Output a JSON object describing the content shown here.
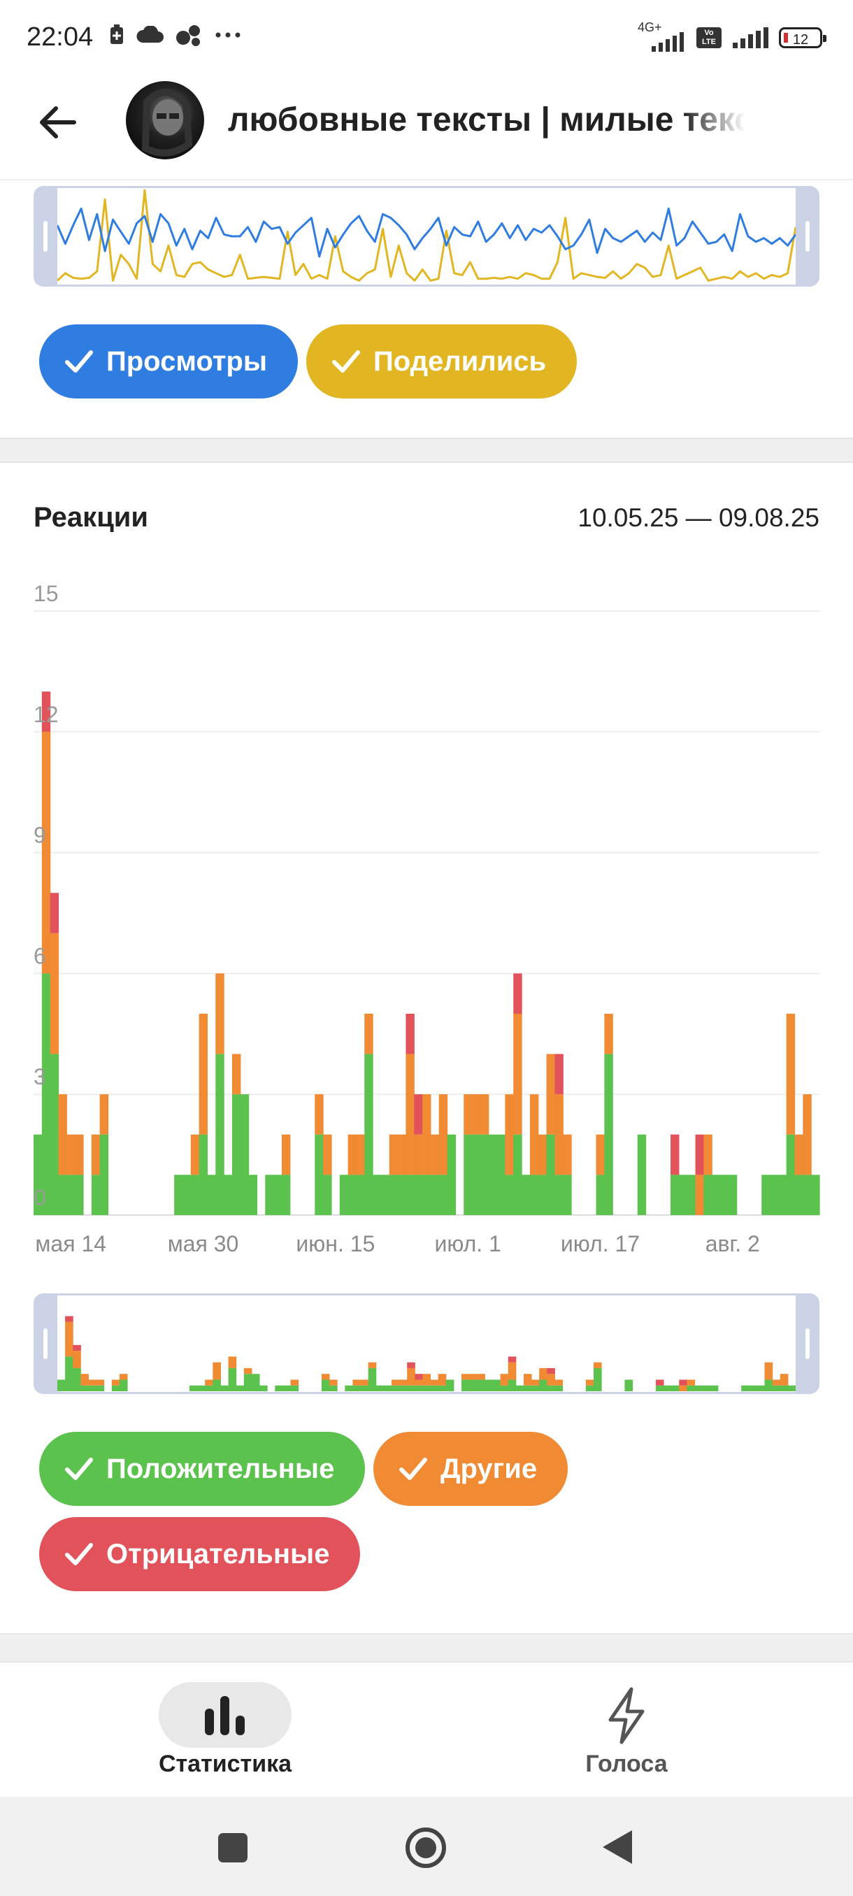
{
  "status_bar": {
    "time": "22:04",
    "network": "4G+",
    "volte": "Vo LTE",
    "battery": "12",
    "icons": [
      "battery-saver-icon",
      "cloud-icon",
      "bubbles-icon",
      "more-dots-icon",
      "signal-icon",
      "volte-icon",
      "battery-icon"
    ]
  },
  "header": {
    "back_icon": "arrow-left-icon",
    "title": "любовные тексты | милые тексты"
  },
  "top_overview": {
    "legend": [
      {
        "label": "Просмотры",
        "color": "#2f7de0"
      },
      {
        "label": "Поделились",
        "color": "#e2b623"
      }
    ],
    "series": {
      "views": [
        62,
        42,
        62,
        80,
        46,
        74,
        34,
        68,
        55,
        42,
        64,
        72,
        44,
        74,
        64,
        40,
        58,
        36,
        56,
        48,
        70,
        52,
        50,
        50,
        60,
        44,
        66,
        58,
        60,
        42,
        54,
        62,
        70,
        28,
        58,
        38,
        52,
        64,
        72,
        56,
        44,
        74,
        70,
        62,
        52,
        36,
        48,
        58,
        70,
        40,
        60,
        52,
        50,
        66,
        44,
        52,
        64,
        48,
        62,
        46,
        58,
        54,
        62,
        50,
        36,
        40,
        52,
        68,
        32,
        58,
        48,
        44,
        50,
        56,
        44,
        54,
        46,
        80,
        40,
        48,
        66,
        54,
        42,
        44,
        52,
        34,
        74,
        50,
        44,
        48,
        42,
        48,
        40,
        52
      ],
      "shares": [
        2,
        10,
        5,
        4,
        5,
        12,
        90,
        2,
        30,
        20,
        4,
        100,
        20,
        12,
        40,
        8,
        6,
        20,
        22,
        14,
        10,
        6,
        8,
        30,
        4,
        5,
        6,
        5,
        4,
        55,
        8,
        20,
        4,
        8,
        4,
        50,
        12,
        6,
        2,
        10,
        14,
        58,
        6,
        40,
        10,
        2,
        14,
        2,
        4,
        56,
        10,
        8,
        22,
        4,
        4,
        5,
        4,
        6,
        4,
        10,
        8,
        4,
        4,
        22,
        70,
        4,
        10,
        8,
        6,
        5,
        12,
        4,
        10,
        20,
        16,
        6,
        8,
        40,
        4,
        8,
        12,
        16,
        2,
        4,
        6,
        4,
        12,
        6,
        10,
        4,
        8,
        6,
        10,
        60
      ]
    }
  },
  "reactions": {
    "title": "Реакции",
    "date_range": "10.05.25 — 09.08.25",
    "legend": [
      {
        "label": "Положительные",
        "color": "#5cc24e"
      },
      {
        "label": "Другие",
        "color": "#f08a33"
      },
      {
        "label": "Отрицательные",
        "color": "#e2525a"
      }
    ]
  },
  "chart_data": {
    "type": "bar",
    "stacked": true,
    "title": "Реакции",
    "date_range": "10.05.25 — 09.08.25",
    "ylim": [
      0,
      15
    ],
    "yticks": [
      0,
      3,
      6,
      9,
      12,
      15
    ],
    "x_tick_labels": [
      "мая 14",
      "мая 30",
      "июн. 15",
      "июл. 1",
      "июл. 17",
      "авг. 2"
    ],
    "x_tick_indices": [
      4,
      20,
      36,
      52,
      68,
      84
    ],
    "grid": true,
    "series": [
      {
        "name": "Положительные",
        "color": "#5cc24e",
        "values": [
          2,
          6,
          4,
          1,
          1,
          1,
          0,
          1,
          2,
          0,
          0,
          0,
          0,
          0,
          0,
          0,
          0,
          1,
          1,
          1,
          2,
          1,
          4,
          1,
          3,
          3,
          1,
          0,
          1,
          1,
          1,
          0,
          0,
          0,
          2,
          1,
          0,
          1,
          1,
          1,
          4,
          1,
          1,
          1,
          1,
          1,
          1,
          1,
          1,
          1,
          2,
          0,
          2,
          2,
          2,
          2,
          2,
          1,
          2,
          1,
          1,
          1,
          2,
          1,
          1,
          0,
          0,
          0,
          1,
          4,
          0,
          0,
          0,
          2,
          0,
          0,
          0,
          1,
          1,
          1,
          0,
          1,
          1,
          1,
          1,
          0,
          0,
          0,
          1,
          1,
          1,
          2,
          1,
          1,
          1
        ]
      },
      {
        "name": "Другие",
        "color": "#f08a33",
        "values": [
          0,
          6,
          3,
          2,
          1,
          1,
          0,
          1,
          1,
          0,
          0,
          0,
          0,
          0,
          0,
          0,
          0,
          0,
          0,
          1,
          3,
          0,
          2,
          0,
          1,
          0,
          0,
          0,
          0,
          0,
          1,
          0,
          0,
          0,
          1,
          1,
          0,
          0,
          1,
          1,
          1,
          0,
          0,
          1,
          1,
          3,
          1,
          2,
          1,
          2,
          0,
          0,
          1,
          1,
          1,
          0,
          0,
          2,
          3,
          0,
          2,
          1,
          2,
          2,
          1,
          0,
          0,
          0,
          1,
          1,
          0,
          0,
          0,
          0,
          0,
          0,
          0,
          0,
          0,
          0,
          1,
          1,
          0,
          0,
          0,
          0,
          0,
          0,
          0,
          0,
          0,
          3,
          1,
          2,
          0
        ]
      },
      {
        "name": "Отрицательные",
        "color": "#e2525a",
        "values": [
          0,
          1,
          1,
          0,
          0,
          0,
          0,
          0,
          0,
          0,
          0,
          0,
          0,
          0,
          0,
          0,
          0,
          0,
          0,
          0,
          0,
          0,
          0,
          0,
          0,
          0,
          0,
          0,
          0,
          0,
          0,
          0,
          0,
          0,
          0,
          0,
          0,
          0,
          0,
          0,
          0,
          0,
          0,
          0,
          0,
          1,
          1,
          0,
          0,
          0,
          0,
          0,
          0,
          0,
          0,
          0,
          0,
          0,
          1,
          0,
          0,
          0,
          0,
          1,
          0,
          0,
          0,
          0,
          0,
          0,
          0,
          0,
          0,
          0,
          0,
          0,
          0,
          1,
          0,
          0,
          1,
          0,
          0,
          0,
          0,
          0,
          0,
          0,
          0,
          0,
          0,
          0,
          0,
          0,
          0
        ]
      }
    ]
  },
  "bottom_nav": {
    "items": [
      {
        "label": "Статистика",
        "icon": "bar-chart-icon",
        "active": true
      },
      {
        "label": "Голоса",
        "icon": "lightning-icon",
        "active": false
      }
    ]
  },
  "system_nav": {
    "icons": [
      "recent-apps-square-icon",
      "home-circle-icon",
      "back-triangle-icon"
    ]
  }
}
